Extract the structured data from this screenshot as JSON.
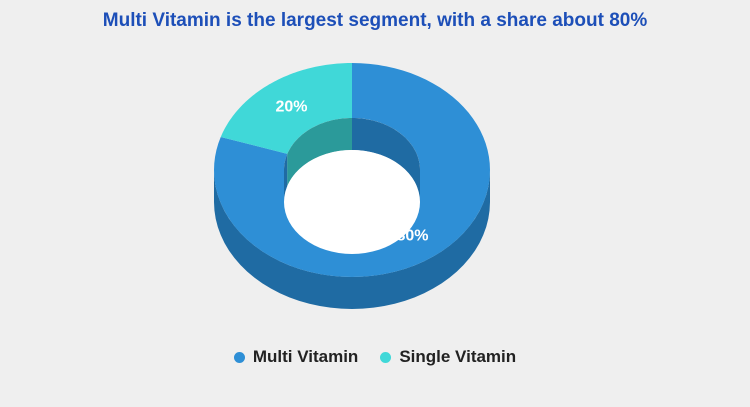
{
  "chart_data": {
    "type": "pie",
    "title": "Multi Vitamin is the largest segment, with a share about 80%",
    "categories": [
      "Multi Vitamin",
      "Single Vitamin"
    ],
    "values": [
      80,
      20
    ],
    "value_labels": [
      "80%",
      "20%"
    ],
    "colors": [
      "#2e8fd6",
      "#40d8d8"
    ],
    "side_colors": [
      "#1f6ba3",
      "#2b9a9a"
    ],
    "legend_position": "bottom"
  }
}
